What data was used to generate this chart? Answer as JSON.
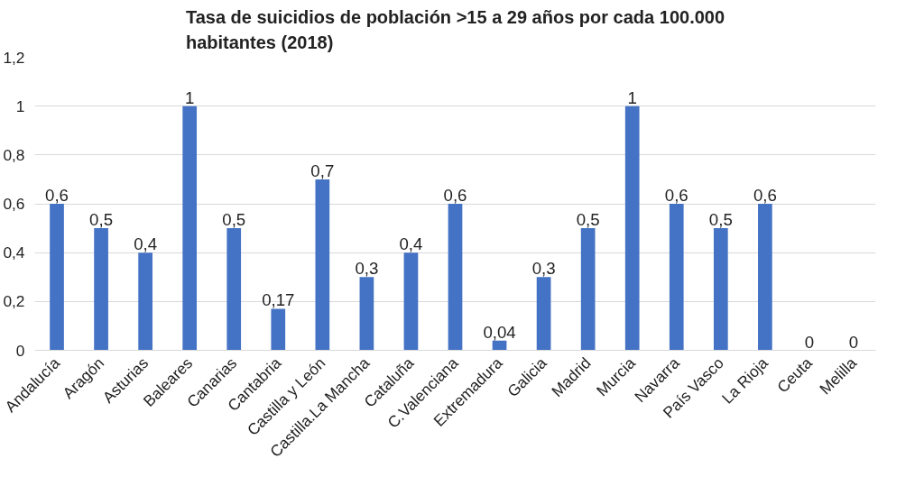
{
  "chart_data": {
    "type": "bar",
    "title": "Tasa de suicidios de población >15 a 29 años por cada 100.000 habitantes (2018)",
    "categories": [
      "Andalucía",
      "Aragón",
      "Asturias",
      "Baleares",
      "Canarias",
      "Cantabria",
      "Castilla y León",
      "Castilla.La Mancha",
      "Cataluña",
      "C.Valenciana",
      "Extremadura",
      "Galicia",
      "Madrid",
      "Murcia",
      "Navarra",
      "País Vasco",
      "La Rioja",
      "Ceuta",
      "Melilla"
    ],
    "values": [
      0.6,
      0.5,
      0.4,
      1,
      0.5,
      0.17,
      0.7,
      0.3,
      0.4,
      0.6,
      0.04,
      0.3,
      0.5,
      1,
      0.6,
      0.5,
      0.6,
      0,
      0
    ],
    "value_labels": [
      "0,6",
      "0,5",
      "0,4",
      "1",
      "0,5",
      "0,17",
      "0,7",
      "0,3",
      "0,4",
      "0,6",
      "0,04",
      "0,3",
      "0,5",
      "1",
      "0,6",
      "0,5",
      "0,6",
      "0",
      "0"
    ],
    "color": "#4472c4",
    "ylim": [
      0,
      1.2
    ],
    "yticks": [
      0,
      {
        "value": 0.2,
        "label": "0,2"
      },
      {
        "value": 0.4,
        "label": "0,4"
      },
      {
        "value": 0.6,
        "label": "0,6"
      },
      {
        "value": 0.8,
        "label": "0,8"
      },
      1,
      {
        "value": 1.2,
        "label": "1,2"
      }
    ],
    "grid": "y"
  }
}
